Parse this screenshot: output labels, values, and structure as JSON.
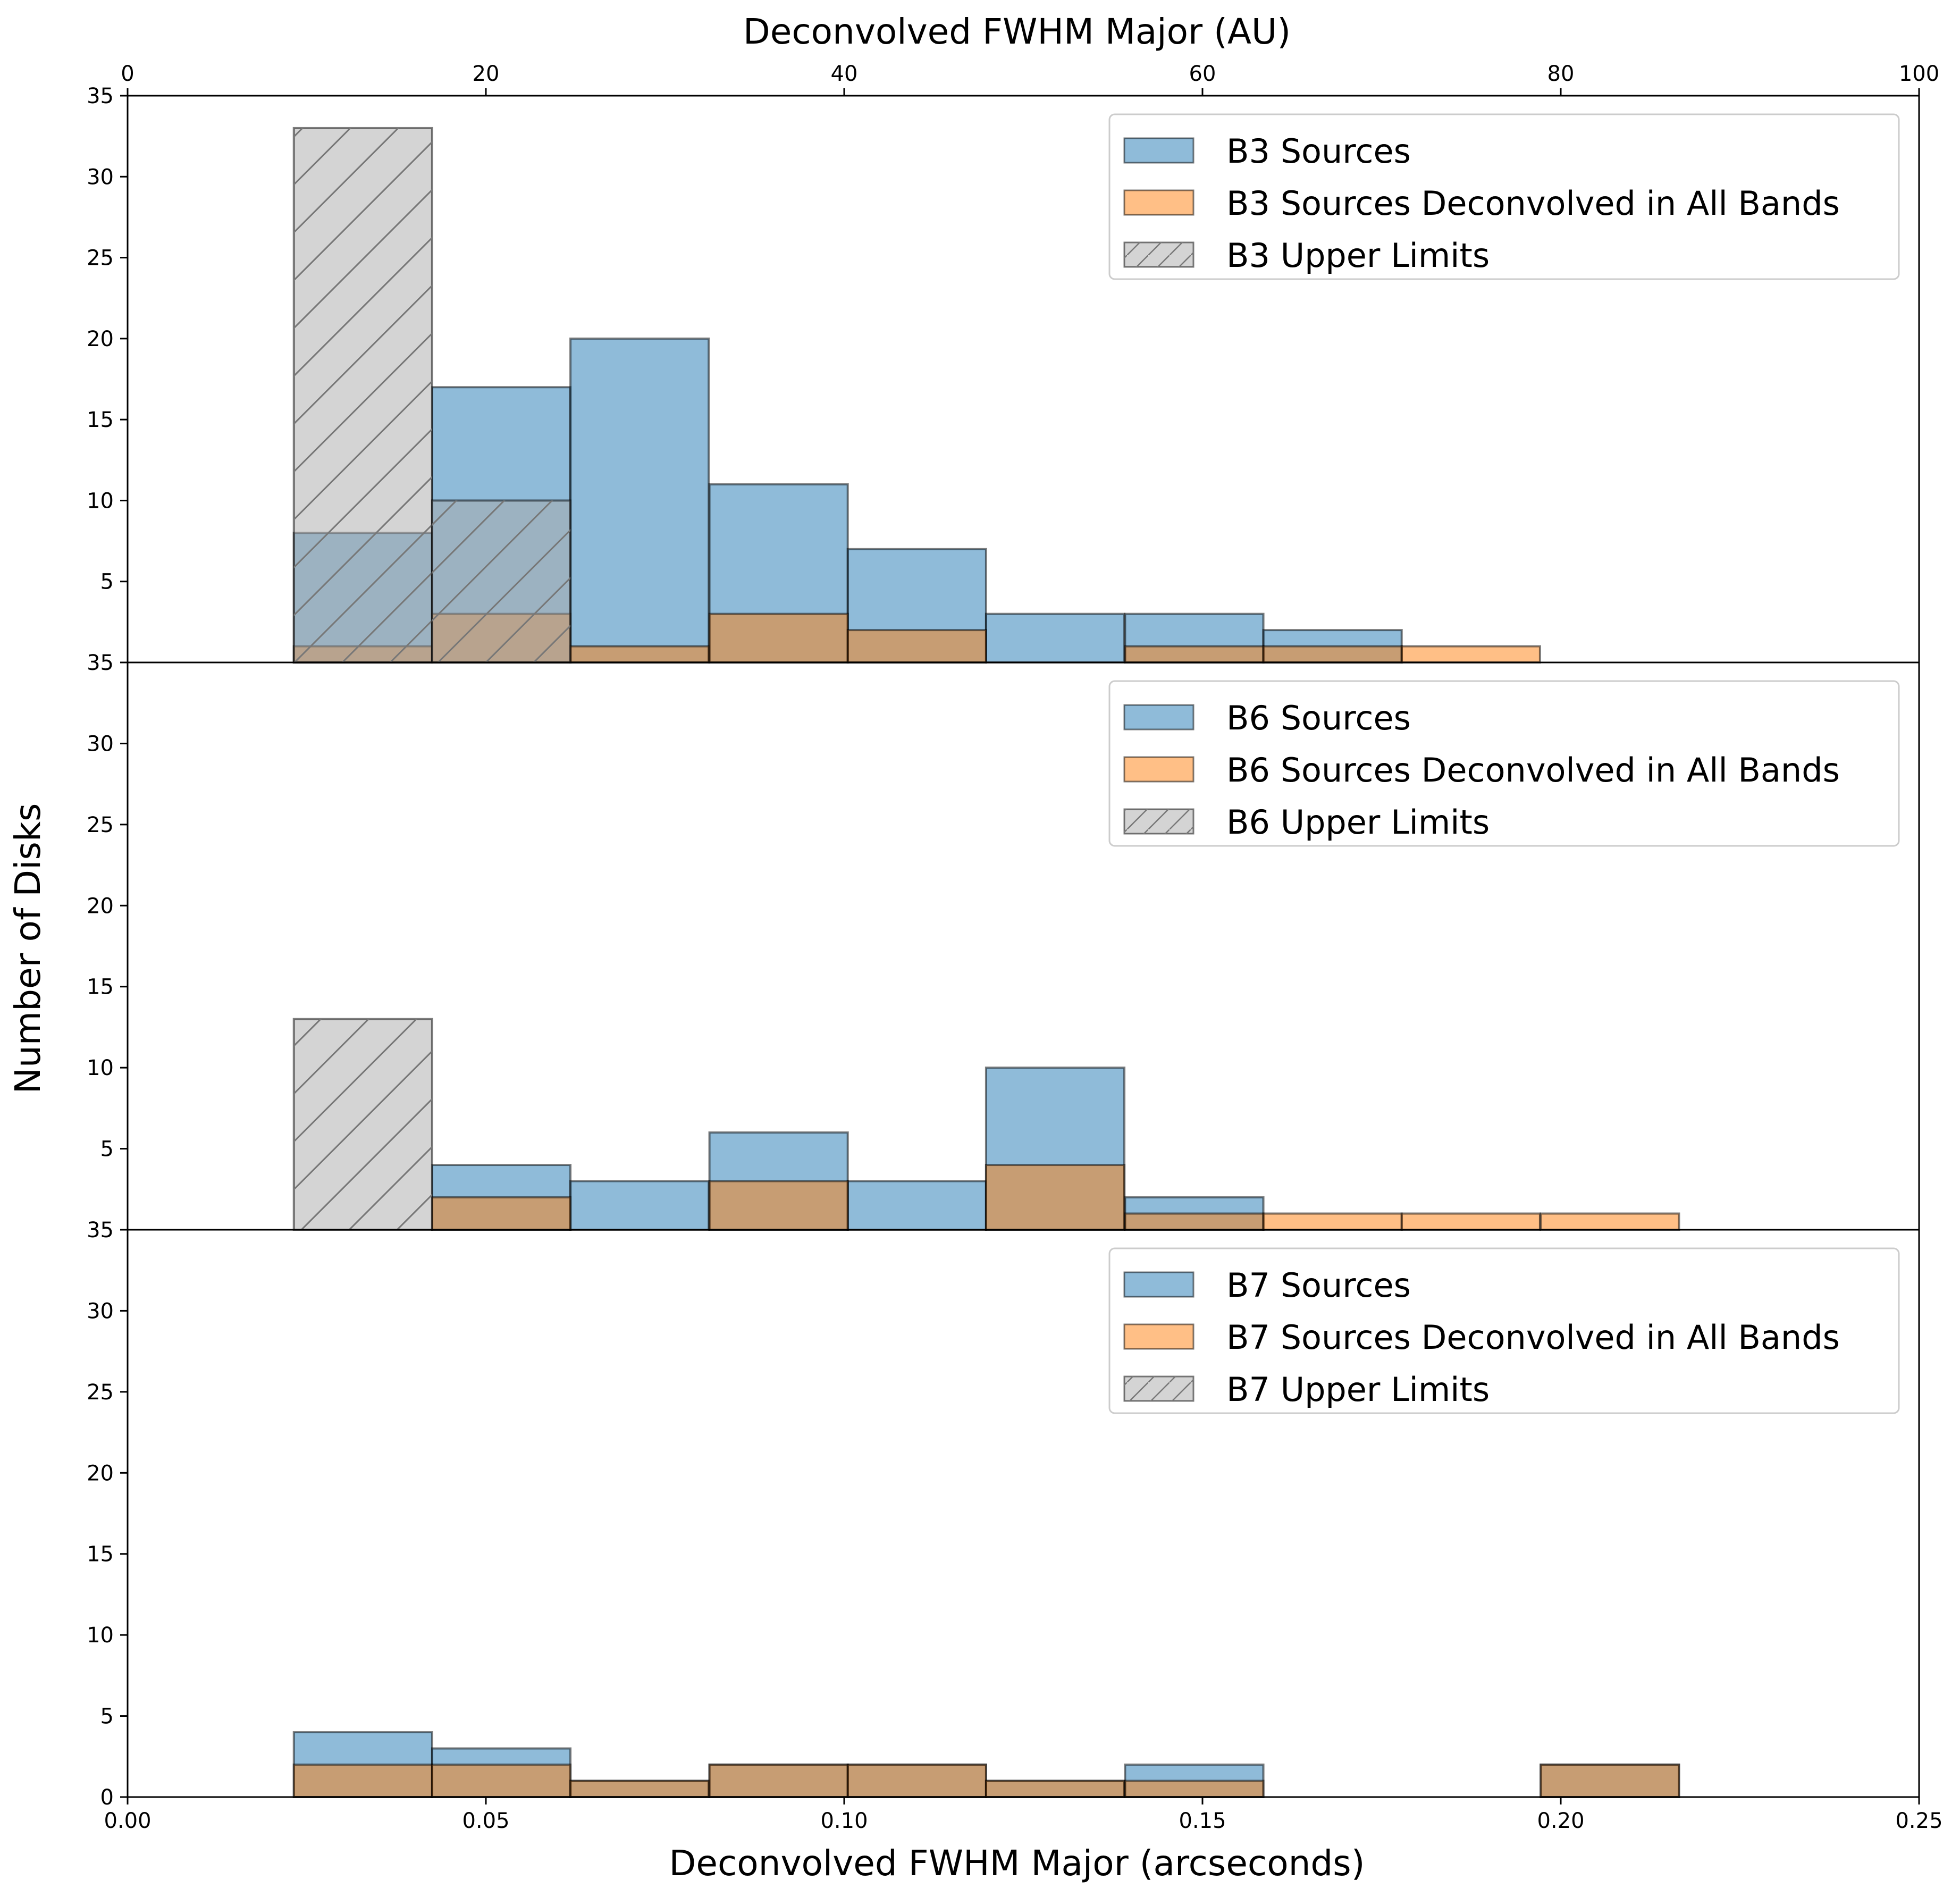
{
  "chart_data": {
    "type": "bar",
    "top_axis": {
      "label": "Deconvolved FWHM Major (AU)",
      "range": [
        0,
        100
      ],
      "ticks": [
        "0",
        "20",
        "40",
        "60",
        "80",
        "100"
      ]
    },
    "x_axis": {
      "label": "Deconvolved FWHM Major (arcseconds)",
      "range": [
        0.0,
        0.25
      ],
      "ticks": [
        "0.00",
        "0.05",
        "0.10",
        "0.15",
        "0.20",
        "0.25"
      ]
    },
    "y_axis": {
      "label": "Number of Disks",
      "range": [
        0,
        35
      ],
      "ticks": [
        "0",
        "5",
        "10",
        "15",
        "20",
        "25",
        "30",
        "35"
      ]
    },
    "bin_edges": [
      0.0232,
      0.0425,
      0.0618,
      0.0812,
      0.1005,
      0.1198,
      0.1392,
      0.1585,
      0.1778,
      0.1972,
      0.2165
    ],
    "colors": {
      "sources": "#1f77b4",
      "deconvolved": "#ff7f0e",
      "upper_limits": "#a9a9a9"
    },
    "legend_position": "upper-right",
    "panels": [
      {
        "band": "B3",
        "series": [
          {
            "name": "B3 Sources",
            "values": [
              8,
              17,
              20,
              11,
              7,
              3,
              3,
              2,
              0,
              0
            ]
          },
          {
            "name": "B3 Sources Deconvolved in All Bands",
            "values": [
              1,
              3,
              1,
              3,
              2,
              0,
              1,
              1,
              1,
              0
            ]
          },
          {
            "name": "B3 Upper Limits",
            "values": [
              33,
              10,
              0,
              0,
              0,
              0,
              0,
              0,
              0,
              0
            ]
          }
        ]
      },
      {
        "band": "B6",
        "series": [
          {
            "name": "B6 Sources",
            "values": [
              0,
              4,
              3,
              6,
              3,
              10,
              2,
              0,
              0,
              0
            ]
          },
          {
            "name": "B6 Sources Deconvolved in All Bands",
            "values": [
              0,
              2,
              0,
              3,
              0,
              4,
              1,
              1,
              1,
              1
            ]
          },
          {
            "name": "B6 Upper Limits",
            "values": [
              13,
              0,
              0,
              0,
              0,
              0,
              0,
              0,
              0,
              0
            ]
          }
        ]
      },
      {
        "band": "B7",
        "series": [
          {
            "name": "B7 Sources",
            "values": [
              4,
              3,
              1,
              2,
              2,
              1,
              2,
              0,
              0,
              2
            ]
          },
          {
            "name": "B7 Sources Deconvolved in All Bands",
            "values": [
              2,
              2,
              1,
              2,
              2,
              1,
              1,
              0,
              0,
              2
            ]
          },
          {
            "name": "B7 Upper Limits",
            "values": [
              0,
              0,
              0,
              0,
              0,
              0,
              0,
              0,
              0,
              0
            ]
          }
        ]
      }
    ]
  }
}
